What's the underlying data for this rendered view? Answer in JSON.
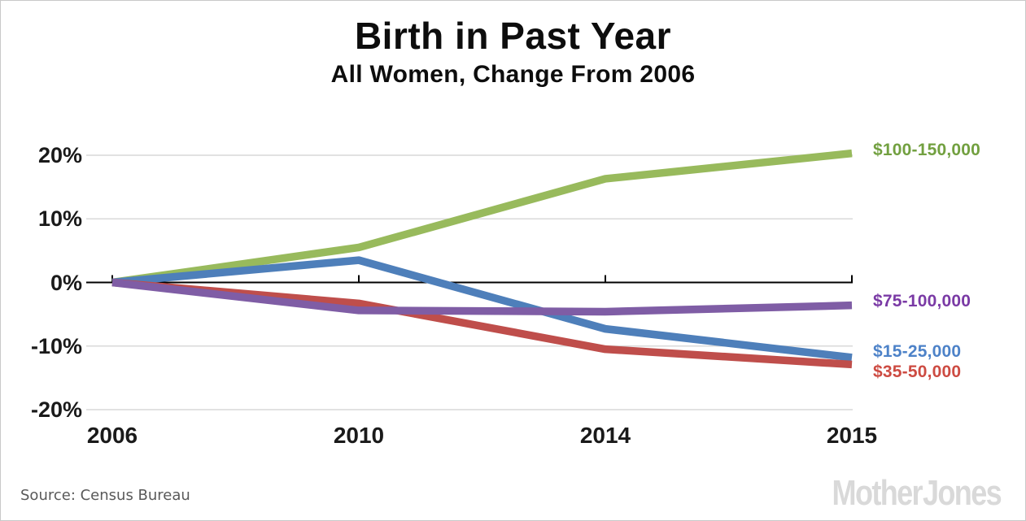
{
  "header": {
    "title": "Birth in Past Year",
    "subtitle": "All Women, Change From 2006"
  },
  "footer": {
    "source_text": "Source: Census Bureau",
    "branding": "Mother Jones"
  },
  "chart_data": {
    "type": "line",
    "title": "Birth in Past Year",
    "subtitle": "All Women, Change From 2006",
    "categories": [
      "2006",
      "2010",
      "2014",
      "2015"
    ],
    "unit": "%",
    "series": [
      {
        "name": "$100-150,000",
        "values": [
          0,
          5.5,
          16.3,
          20.3
        ],
        "line_color": "#98ba5c",
        "label_color": "#72a040"
      },
      {
        "name": "$15-25,000",
        "values": [
          0,
          3.5,
          -7.3,
          -11.8
        ],
        "line_color": "#4e7fba",
        "label_color": "#4d82c8"
      },
      {
        "name": "$35-50,000",
        "values": [
          0,
          -3.3,
          -10.5,
          -12.9
        ],
        "line_color": "#bf4e4b",
        "label_color": "#cd4b42"
      },
      {
        "name": "$75-100,000",
        "values": [
          0,
          -4.4,
          -4.6,
          -3.6
        ],
        "line_color": "#7f5da5",
        "label_color": "#7a3aa5"
      }
    ],
    "y_ticks": [
      {
        "label": "20%",
        "value": 20
      },
      {
        "label": "10%",
        "value": 10
      },
      {
        "label": "0%",
        "value": 0
      },
      {
        "label": "-10%",
        "value": -10
      },
      {
        "label": "-20%",
        "value": -20
      }
    ],
    "ylim": [
      -20,
      20
    ],
    "grid": true,
    "legend_position": "right",
    "colors": {
      "grid": "#d9d9d9",
      "axis": "#000000",
      "tick_label": "#1a1a1a"
    }
  }
}
